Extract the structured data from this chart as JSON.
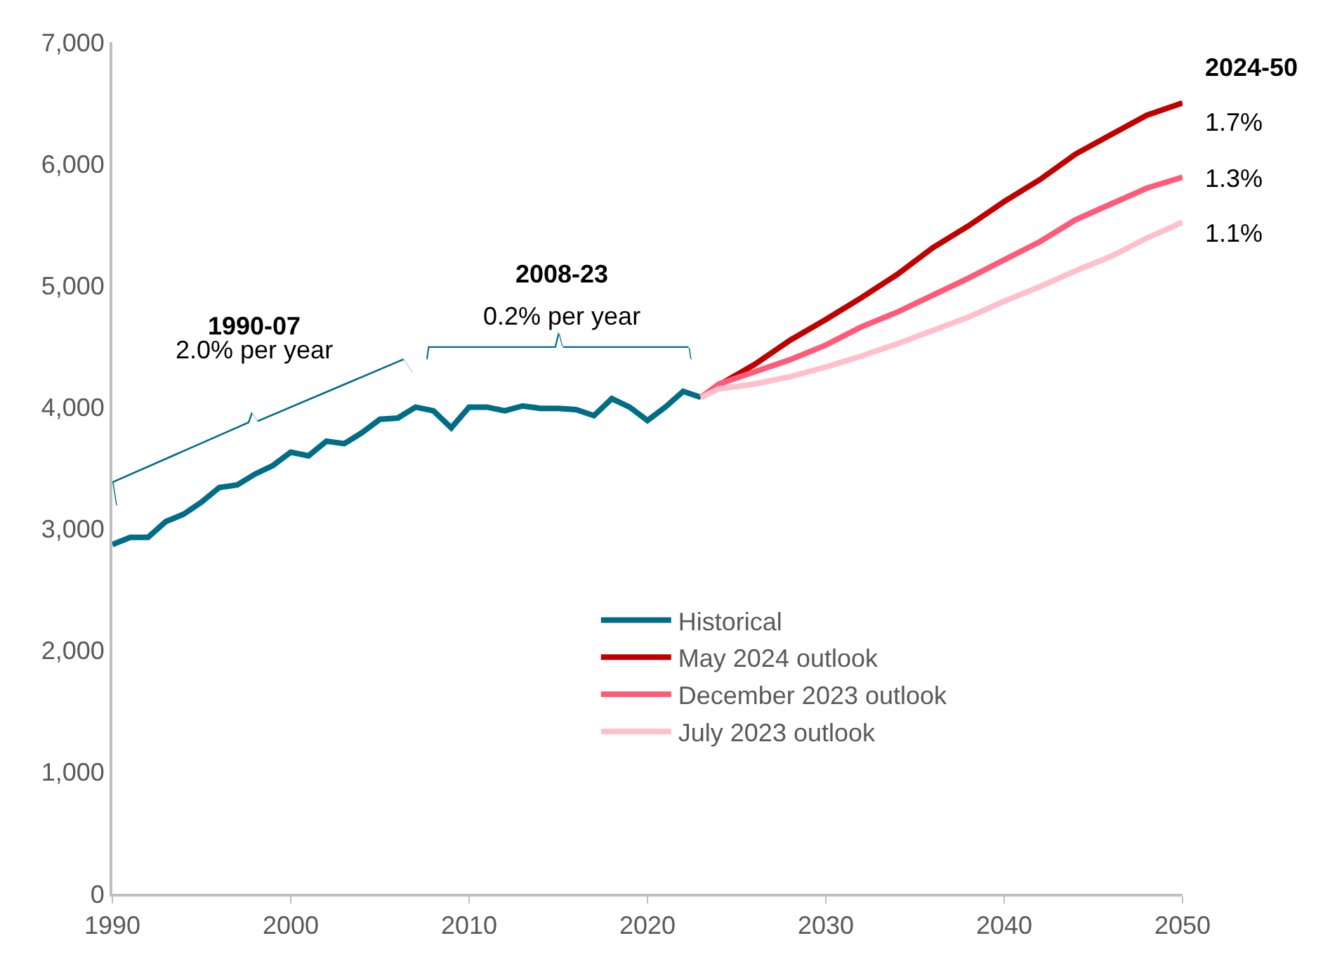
{
  "chart_data": {
    "type": "line",
    "xlim": [
      1990,
      2050
    ],
    "xticks": [
      1990,
      2000,
      2010,
      2020,
      2030,
      2040,
      2050
    ],
    "ylim": [
      0,
      7000
    ],
    "yticks": [
      0,
      {
        "value": 1000,
        "label": "1,000"
      },
      {
        "value": 2000,
        "label": "2,000"
      },
      {
        "value": 3000,
        "label": "3,000"
      },
      {
        "value": 4000,
        "label": "4,000"
      },
      {
        "value": 5000,
        "label": "5,000"
      },
      {
        "value": 6000,
        "label": "6,000"
      },
      {
        "value": 7000,
        "label": "7,000"
      }
    ],
    "legend": "bottom",
    "marker": "none",
    "line_style": "solid",
    "series": [
      {
        "name": "Historical",
        "color": "#006d86",
        "x": [
          1990,
          1991,
          1992,
          1993,
          1994,
          1995,
          1996,
          1997,
          1998,
          1999,
          2000,
          2001,
          2002,
          2003,
          2004,
          2005,
          2006,
          2007,
          2008,
          2009,
          2010,
          2011,
          2012,
          2013,
          2014,
          2015,
          2016,
          2017,
          2018,
          2019,
          2020,
          2021,
          2022,
          2023
        ],
        "values": [
          2870,
          2930,
          2930,
          3060,
          3120,
          3220,
          3340,
          3360,
          3450,
          3520,
          3630,
          3600,
          3720,
          3700,
          3790,
          3900,
          3910,
          4000,
          3970,
          3830,
          4000,
          4000,
          3970,
          4010,
          3990,
          3990,
          3980,
          3930,
          4070,
          4000,
          3890,
          4000,
          4130,
          4080
        ]
      },
      {
        "name": "May 2024 outlook",
        "color": "#c00000",
        "x": [
          2023,
          2024,
          2026,
          2028,
          2030,
          2032,
          2034,
          2036,
          2038,
          2040,
          2042,
          2044,
          2046,
          2048,
          2050
        ],
        "values": [
          4080,
          4180,
          4350,
          4550,
          4720,
          4900,
          5090,
          5310,
          5490,
          5690,
          5870,
          6080,
          6240,
          6400,
          6500
        ]
      },
      {
        "name": "December 2023 outlook",
        "color": "#ff5a78",
        "x": [
          2023,
          2024,
          2026,
          2028,
          2030,
          2032,
          2034,
          2036,
          2038,
          2040,
          2042,
          2044,
          2046,
          2048,
          2050
        ],
        "values": [
          4080,
          4190,
          4290,
          4390,
          4510,
          4660,
          4780,
          4920,
          5060,
          5210,
          5360,
          5540,
          5670,
          5800,
          5890
        ]
      },
      {
        "name": "July 2023 outlook",
        "color": "#ffc0cb",
        "x": [
          2023,
          2024,
          2026,
          2028,
          2030,
          2032,
          2034,
          2036,
          2038,
          2040,
          2042,
          2044,
          2046,
          2048,
          2050
        ],
        "values": [
          4080,
          4150,
          4190,
          4250,
          4330,
          4420,
          4520,
          4630,
          4740,
          4870,
          4990,
          5120,
          5240,
          5390,
          5520
        ]
      }
    ],
    "annotations": [
      "1990-07",
      "2.0% per year",
      "2008-23",
      "0.2% per year",
      "2024-50",
      "1.7%",
      "1.3%",
      "1.1%"
    ]
  }
}
